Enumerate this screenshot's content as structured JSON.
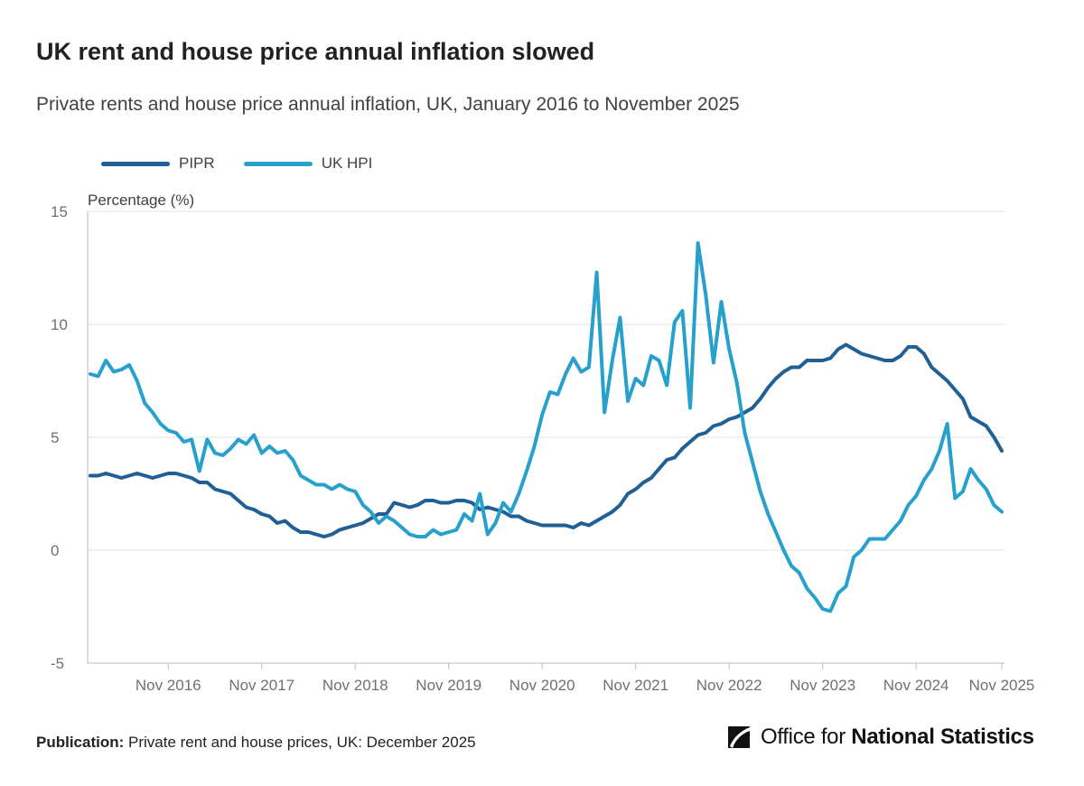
{
  "title": "UK rent and house price annual inflation slowed",
  "subtitle": "Private rents and house price annual inflation, UK, January 2016 to November 2025",
  "footer": {
    "label": "Publication:",
    "text": "Private rent and house prices, UK: December 2025"
  },
  "logo": {
    "text_regular": "Office for ",
    "text_bold": "National Statistics"
  },
  "colors": {
    "pipr": "#206095",
    "ukhpi": "#27a0cc",
    "grid": "#e0e0e0",
    "axis": "#bbbbbb",
    "tick_text": "#707071"
  },
  "chart_data": {
    "type": "line",
    "ylabel": "Percentage (%)",
    "ylim": [
      -5,
      15
    ],
    "yticks": [
      15,
      10,
      5,
      0,
      -5
    ],
    "grid": true,
    "legend_position": "top-left",
    "x_start": "2016-01",
    "x_end": "2025-11",
    "xticks": [
      "Nov 2016",
      "Nov 2017",
      "Nov 2018",
      "Nov 2019",
      "Nov 2020",
      "Nov 2021",
      "Nov 2022",
      "Nov 2023",
      "Nov 2024",
      "Nov 2025"
    ],
    "series": [
      {
        "name": "PIPR",
        "values": [
          3.3,
          3.3,
          3.4,
          3.3,
          3.2,
          3.3,
          3.4,
          3.3,
          3.2,
          3.3,
          3.4,
          3.4,
          3.3,
          3.2,
          3.0,
          3.0,
          2.7,
          2.6,
          2.5,
          2.2,
          1.9,
          1.8,
          1.6,
          1.5,
          1.2,
          1.3,
          1.0,
          0.8,
          0.8,
          0.7,
          0.6,
          0.7,
          0.9,
          1.0,
          1.1,
          1.2,
          1.4,
          1.6,
          1.6,
          2.1,
          2.0,
          1.9,
          2.0,
          2.2,
          2.2,
          2.1,
          2.1,
          2.2,
          2.2,
          2.1,
          1.8,
          1.9,
          1.8,
          1.7,
          1.5,
          1.5,
          1.3,
          1.2,
          1.1,
          1.1,
          1.1,
          1.1,
          1.0,
          1.2,
          1.1,
          1.3,
          1.5,
          1.7,
          2.0,
          2.5,
          2.7,
          3.0,
          3.2,
          3.6,
          4.0,
          4.1,
          4.5,
          4.8,
          5.1,
          5.2,
          5.5,
          5.6,
          5.8,
          5.9,
          6.1,
          6.3,
          6.7,
          7.2,
          7.6,
          7.9,
          8.1,
          8.1,
          8.4,
          8.4,
          8.4,
          8.5,
          8.9,
          9.1,
          8.9,
          8.7,
          8.6,
          8.5,
          8.4,
          8.4,
          8.6,
          9.0,
          9.0,
          8.7,
          8.1,
          7.8,
          7.5,
          7.1,
          6.7,
          5.9,
          5.7,
          5.5,
          5.0,
          4.4
        ]
      },
      {
        "name": "UK HPI",
        "values": [
          7.8,
          7.7,
          8.4,
          7.9,
          8.0,
          8.2,
          7.5,
          6.5,
          6.1,
          5.6,
          5.3,
          5.2,
          4.8,
          4.9,
          3.5,
          4.9,
          4.3,
          4.2,
          4.5,
          4.9,
          4.7,
          5.1,
          4.3,
          4.6,
          4.3,
          4.4,
          4.0,
          3.3,
          3.1,
          2.9,
          2.9,
          2.7,
          2.9,
          2.7,
          2.6,
          2.0,
          1.7,
          1.2,
          1.5,
          1.3,
          1.0,
          0.7,
          0.6,
          0.6,
          0.9,
          0.7,
          0.8,
          0.9,
          1.6,
          1.3,
          2.5,
          0.7,
          1.2,
          2.1,
          1.7,
          2.5,
          3.5,
          4.6,
          6.0,
          7.0,
          6.9,
          7.8,
          8.5,
          7.9,
          8.1,
          12.3,
          6.1,
          8.4,
          10.3,
          6.6,
          7.6,
          7.3,
          8.6,
          8.4,
          7.3,
          10.1,
          10.6,
          6.3,
          13.6,
          11.3,
          8.3,
          11.0,
          8.9,
          7.4,
          5.2,
          3.9,
          2.6,
          1.6,
          0.8,
          0.0,
          -0.7,
          -1.0,
          -1.7,
          -2.1,
          -2.6,
          -2.7,
          -1.9,
          -1.6,
          -0.3,
          0.0,
          0.5,
          0.5,
          0.5,
          0.9,
          1.3,
          2.0,
          2.4,
          3.1,
          3.6,
          4.4,
          5.6,
          2.3,
          2.6,
          3.6,
          3.1,
          2.7,
          2.0,
          1.7
        ]
      }
    ]
  }
}
